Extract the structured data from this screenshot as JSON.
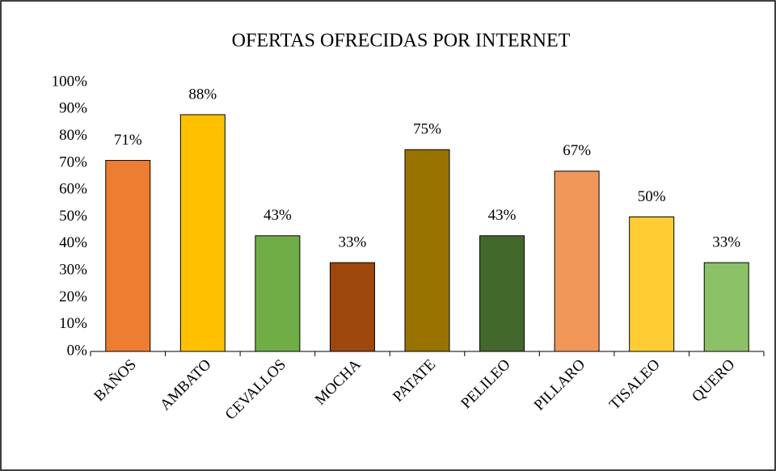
{
  "chart_data": {
    "type": "bar",
    "title": "OFERTAS OFRECIDAS POR INTERNET",
    "categories": [
      "BAÑOS",
      "AMBATO",
      "CEVALLOS",
      "MOCHA",
      "PATATE",
      "PELILEO",
      "PILLARO",
      "TISALEO",
      "QUERO"
    ],
    "values": [
      71,
      88,
      43,
      33,
      75,
      43,
      67,
      50,
      33
    ],
    "value_labels": [
      "71%",
      "88%",
      "43%",
      "33%",
      "75%",
      "43%",
      "67%",
      "50%",
      "33%"
    ],
    "colors": [
      "#ED7D31",
      "#FFC000",
      "#70AD47",
      "#9E480E",
      "#997300",
      "#43682B",
      "#F1975A",
      "#FFCD33",
      "#8CC168"
    ],
    "ylim": [
      0,
      100
    ],
    "yticks": [
      {
        "value": 0,
        "label": "0%"
      },
      {
        "value": 10,
        "label": "10%"
      },
      {
        "value": 20,
        "label": "20%"
      },
      {
        "value": 30,
        "label": "30%"
      },
      {
        "value": 40,
        "label": "40%"
      },
      {
        "value": 50,
        "label": "50%"
      },
      {
        "value": 60,
        "label": "60%"
      },
      {
        "value": 70,
        "label": "70%"
      },
      {
        "value": 80,
        "label": "80%"
      },
      {
        "value": 90,
        "label": "90%"
      },
      {
        "value": 100,
        "label": "100%"
      }
    ],
    "grid": false
  }
}
